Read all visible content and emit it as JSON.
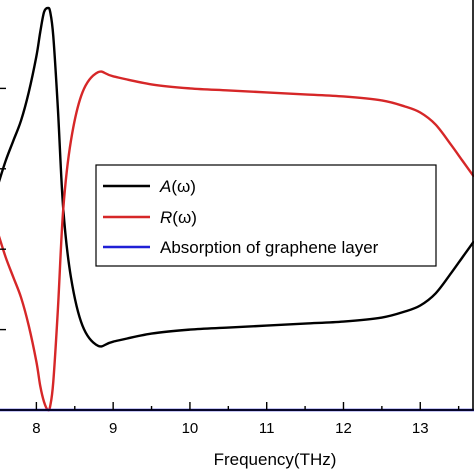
{
  "chart_data": {
    "type": "line",
    "xlabel": "Frequency(THz)",
    "ylabel": "",
    "title": "",
    "xlim": [
      7.5,
      13.7
    ],
    "ylim": [
      0,
      1
    ],
    "x_ticks": [
      "8",
      "9",
      "10",
      "11",
      "12",
      "13"
    ],
    "grid": false,
    "legend_position": "center-right",
    "series": [
      {
        "name": "A(ω)",
        "name_italic": "A",
        "name_rest": "(ω)",
        "color": "#000000",
        "x": [
          7.5,
          7.6,
          7.7,
          7.8,
          7.9,
          8.0,
          8.05,
          8.1,
          8.15,
          8.18,
          8.22,
          8.28,
          8.35,
          8.45,
          8.6,
          8.8,
          9.0,
          9.5,
          10.0,
          10.5,
          11.0,
          11.5,
          12.0,
          12.5,
          12.8,
          13.0,
          13.2,
          13.4,
          13.55,
          13.7
        ],
        "y": [
          0.56,
          0.62,
          0.67,
          0.72,
          0.79,
          0.88,
          0.94,
          0.99,
          1.0,
          0.99,
          0.93,
          0.75,
          0.5,
          0.33,
          0.21,
          0.16,
          0.17,
          0.19,
          0.2,
          0.205,
          0.21,
          0.215,
          0.22,
          0.23,
          0.245,
          0.26,
          0.29,
          0.34,
          0.38,
          0.42
        ]
      },
      {
        "name": "R(ω)",
        "name_italic": "R",
        "name_rest": "(ω)",
        "color": "#d62728",
        "x": [
          7.5,
          7.6,
          7.7,
          7.8,
          7.9,
          8.0,
          8.05,
          8.1,
          8.15,
          8.18,
          8.22,
          8.28,
          8.35,
          8.45,
          8.6,
          8.8,
          9.0,
          9.5,
          10.0,
          10.5,
          11.0,
          11.5,
          12.0,
          12.5,
          12.8,
          13.0,
          13.2,
          13.4,
          13.55,
          13.7
        ],
        "y": [
          0.44,
          0.38,
          0.33,
          0.28,
          0.21,
          0.12,
          0.06,
          0.02,
          0.0,
          0.01,
          0.07,
          0.25,
          0.5,
          0.67,
          0.79,
          0.84,
          0.83,
          0.81,
          0.8,
          0.795,
          0.79,
          0.785,
          0.78,
          0.77,
          0.755,
          0.74,
          0.71,
          0.66,
          0.62,
          0.58
        ]
      },
      {
        "name": "Absorption of graphene layer",
        "color": "#1f1fd6",
        "x": [
          7.5,
          13.7
        ],
        "y": [
          0.0,
          0.0
        ]
      }
    ]
  }
}
